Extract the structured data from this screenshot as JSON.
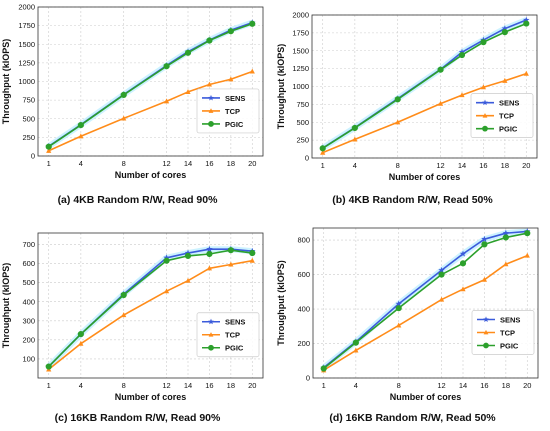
{
  "colors": {
    "SENS": "#3b5bdb",
    "TCP": "#ff8c1a",
    "PGIC": "#2ca02c",
    "glow": "#bfefff",
    "grid": "#cccccc",
    "axis": "#333333"
  },
  "markers": {
    "SENS": "star",
    "TCP": "triangle",
    "PGIC": "circle"
  },
  "chart_data": [
    {
      "type": "line",
      "caption": "(a) 4KB Random R/W, Read 90%",
      "xlabel": "Number of cores",
      "ylabel": "Throughput (kIOPS)",
      "x": [
        1,
        4,
        8,
        12,
        14,
        16,
        18,
        20
      ],
      "xlim": [
        0,
        21
      ],
      "ylim": [
        0,
        2000
      ],
      "yticks": [
        0,
        250,
        500,
        750,
        1000,
        1250,
        1500,
        1750,
        2000
      ],
      "grid": true,
      "legend": "center-right",
      "series": [
        {
          "name": "SENS",
          "values": [
            130,
            420,
            825,
            1215,
            1400,
            1555,
            1690,
            1790
          ]
        },
        {
          "name": "TCP",
          "values": [
            70,
            265,
            505,
            735,
            860,
            960,
            1030,
            1135
          ]
        },
        {
          "name": "PGIC",
          "values": [
            125,
            415,
            820,
            1205,
            1385,
            1550,
            1675,
            1775
          ]
        }
      ]
    },
    {
      "type": "line",
      "caption": "(b) 4KB Random R/W, Read 50%",
      "xlabel": "Number of cores",
      "ylabel": "Throughput (kIOPS)",
      "x": [
        1,
        4,
        8,
        12,
        14,
        16,
        18,
        20
      ],
      "xlim": [
        0,
        21
      ],
      "ylim": [
        0,
        2000
      ],
      "yticks": [
        0,
        250,
        500,
        750,
        1000,
        1250,
        1500,
        1750,
        2000
      ],
      "grid": true,
      "legend": "center-right",
      "series": [
        {
          "name": "SENS",
          "values": [
            140,
            425,
            830,
            1240,
            1480,
            1650,
            1810,
            1930
          ]
        },
        {
          "name": "TCP",
          "values": [
            75,
            260,
            500,
            760,
            880,
            990,
            1080,
            1180
          ]
        },
        {
          "name": "PGIC",
          "values": [
            135,
            420,
            820,
            1235,
            1440,
            1620,
            1760,
            1880
          ]
        }
      ]
    },
    {
      "type": "line",
      "caption": "(c) 16KB Random R/W, Read 90%",
      "xlabel": "Number of cores",
      "ylabel": "Throughput (kIOPS)",
      "x": [
        1,
        4,
        8,
        12,
        14,
        16,
        18,
        20
      ],
      "xlim": [
        0,
        21
      ],
      "ylim": [
        0,
        760
      ],
      "yticks": [
        100,
        200,
        300,
        400,
        500,
        600,
        700
      ],
      "grid": true,
      "legend": "center-right",
      "series": [
        {
          "name": "SENS",
          "values": [
            60,
            230,
            440,
            630,
            655,
            675,
            675,
            665
          ]
        },
        {
          "name": "TCP",
          "values": [
            45,
            180,
            330,
            455,
            510,
            575,
            595,
            615
          ]
        },
        {
          "name": "PGIC",
          "values": [
            60,
            230,
            435,
            615,
            640,
            650,
            670,
            655
          ]
        }
      ]
    },
    {
      "type": "line",
      "caption": "(d) 16KB Random R/W, Read 50%",
      "xlabel": "Number of cores",
      "ylabel": "Throughput (kIOPS)",
      "x": [
        1,
        4,
        8,
        12,
        14,
        16,
        18,
        20
      ],
      "xlim": [
        0,
        21
      ],
      "ylim": [
        0,
        870
      ],
      "yticks": [
        0,
        200,
        400,
        600,
        800
      ],
      "grid": true,
      "legend": "center-right",
      "series": [
        {
          "name": "SENS",
          "values": [
            60,
            210,
            430,
            625,
            720,
            805,
            840,
            850
          ]
        },
        {
          "name": "TCP",
          "values": [
            45,
            160,
            305,
            455,
            515,
            570,
            660,
            710
          ]
        },
        {
          "name": "PGIC",
          "values": [
            55,
            205,
            405,
            600,
            665,
            775,
            815,
            840
          ]
        }
      ]
    }
  ]
}
